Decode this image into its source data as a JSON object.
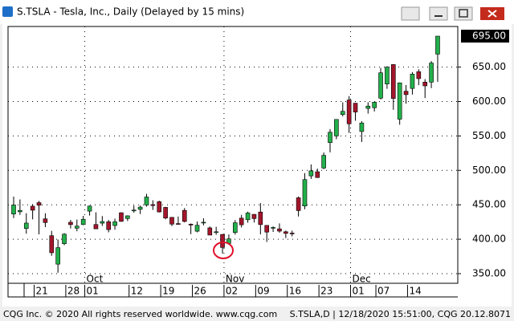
{
  "window": {
    "title": "S.TSLA - Tesla, Inc., Daily (Delayed by 15 mins)",
    "footer_left": "CQG Inc. © 2020 All rights reserved worldwide. www.cqg.com",
    "footer_right": "S.TSLA,D | 12/18/2020 15:51:00, CQG 20.12.8071"
  },
  "chart_data": {
    "type": "candlestick",
    "x": [
      "Sep 15",
      "Sep 16",
      "Sep 17",
      "Sep 18",
      "Sep 21",
      "Sep 22",
      "Sep 23",
      "Sep 24",
      "Sep 25",
      "Sep 28",
      "Sep 29",
      "Sep 30",
      "Oct 1",
      "Oct 2",
      "Oct 5",
      "Oct 6",
      "Oct 7",
      "Oct 8",
      "Oct 9",
      "Oct 12",
      "Oct 13",
      "Oct 14",
      "Oct 15",
      "Oct 16",
      "Oct 19",
      "Oct 20",
      "Oct 21",
      "Oct 22",
      "Oct 23",
      "Oct 26",
      "Oct 27",
      "Oct 28",
      "Oct 29",
      "Oct 30",
      "Nov 2",
      "Nov 3",
      "Nov 4",
      "Nov 5",
      "Nov 6",
      "Nov 9",
      "Nov 10",
      "Nov 11",
      "Nov 12",
      "Nov 13",
      "Nov 16",
      "Nov 17",
      "Nov 18",
      "Nov 19",
      "Nov 20",
      "Nov 23",
      "Nov 24",
      "Nov 25",
      "Nov 27",
      "Nov 30",
      "Dec 1",
      "Dec 2",
      "Dec 3",
      "Dec 4",
      "Dec 7",
      "Dec 8",
      "Dec 9",
      "Dec 10",
      "Dec 11",
      "Dec 14",
      "Dec 15",
      "Dec 16",
      "Dec 17",
      "Dec 18"
    ],
    "open": [
      436.56,
      439.87,
      415.6,
      447.94,
      453.13,
      429.6,
      405.16,
      363.8,
      393.47,
      424.62,
      416.0,
      421.32,
      440.76,
      421.39,
      423.35,
      425.3,
      419.87,
      438.44,
      430.13,
      442.0,
      443.35,
      449.78,
      450.31,
      454.44,
      446.24,
      431.75,
      422.7,
      441.92,
      421.84,
      411.63,
      423.76,
      416.48,
      409.96,
      406.9,
      394.0,
      409.73,
      430.62,
      428.3,
      436.1,
      439.5,
      420.09,
      416.45,
      415.05,
      410.85,
      408.93,
      460.17,
      448.35,
      492.0,
      497.99,
      503.5,
      540.4,
      550.06,
      581.16,
      602.21,
      597.59,
      556.44,
      590.02,
      591.01,
      604.92,
      625.51,
      653.69,
      574.37,
      615.01,
      619.0,
      643.28,
      628.23,
      628.19,
      668.9
    ],
    "high": [
      461.94,
      457.79,
      437.79,
      451.0,
      455.68,
      437.76,
      412.15,
      399.5,
      408.73,
      428.08,
      428.5,
      433.93,
      448.88,
      439.13,
      433.64,
      428.0,
      429.9,
      439.0,
      434.59,
      448.74,
      448.89,
      465.9,
      456.57,
      455.95,
      447.0,
      431.75,
      432.95,
      445.23,
      422.89,
      425.76,
      430.5,
      418.6,
      418.06,
      407.59,
      406.98,
      427.77,
      435.4,
      440.0,
      436.5,
      452.5,
      420.09,
      418.7,
      423.0,
      412.53,
      412.45,
      462.0,
      496.0,
      508.61,
      502.5,
      526.0,
      559.99,
      574.0,
      598.78,
      607.8,
      597.85,
      571.54,
      598.97,
      599.04,
      648.79,
      651.28,
      654.32,
      627.75,
      624.0,
      642.75,
      646.9,
      632.5,
      658.82,
      695.0
    ],
    "low": [
      430.7,
      435.31,
      408.0,
      428.8,
      407.07,
      417.6,
      375.88,
      351.3,
      391.3,
      415.55,
      411.6,
      420.47,
      434.42,
      415.0,
      419.33,
      410.0,
      413.85,
      425.3,
      426.46,
      438.58,
      436.6,
      447.35,
      442.5,
      438.85,
      428.87,
      419.05,
      421.25,
      424.51,
      407.38,
      410.0,
      420.1,
      406.0,
      406.46,
      379.11,
      392.3,
      406.69,
      417.1,
      424.0,
      424.28,
      407.0,
      396.03,
      410.58,
      409.52,
      401.66,
      404.09,
      433.01,
      443.5,
      487.57,
      489.06,
      501.79,
      526.2,
      545.37,
      578.45,
      554.51,
      572.05,
      541.21,
      582.43,
      585.5,
      603.05,
      618.5,
      588.0,
      566.34,
      596.8,
      610.2,
      623.8,
      605.0,
      619.5,
      628.54
    ],
    "close": [
      449.76,
      441.76,
      423.43,
      442.15,
      449.39,
      424.23,
      380.36,
      387.79,
      407.34,
      421.2,
      419.07,
      429.01,
      448.16,
      415.09,
      425.68,
      413.98,
      425.3,
      425.92,
      434.0,
      442.3,
      446.65,
      461.3,
      448.88,
      439.67,
      430.83,
      421.94,
      422.64,
      425.79,
      420.63,
      420.28,
      424.68,
      406.02,
      410.83,
      388.04,
      400.51,
      423.9,
      420.98,
      438.09,
      429.95,
      421.26,
      410.36,
      417.13,
      411.76,
      408.5,
      408.09,
      441.61,
      486.64,
      499.27,
      489.61,
      521.85,
      555.38,
      574.0,
      585.76,
      567.6,
      584.76,
      568.82,
      593.38,
      599.04,
      641.76,
      649.88,
      604.48,
      627.07,
      609.99,
      639.83,
      633.25,
      622.77,
      655.9,
      695.0
    ],
    "last_label": "695.00",
    "up_color": "#22b04a",
    "down_color": "#a3162b",
    "ylim": [
      336,
      709
    ],
    "yticks": [
      {
        "value": 350,
        "label": "350.00"
      },
      {
        "value": 400,
        "label": "400.00"
      },
      {
        "value": 450,
        "label": "450.00"
      },
      {
        "value": 500,
        "label": "500.00"
      },
      {
        "value": 550,
        "label": "550.00"
      },
      {
        "value": 600,
        "label": "600.00"
      },
      {
        "value": 650,
        "label": "650.00"
      }
    ],
    "xticks": [
      {
        "value": "Sep 21",
        "label": "21"
      },
      {
        "value": "Sep 28",
        "label": "28"
      },
      {
        "value": "Oct 1",
        "label": "01"
      },
      {
        "value": "Oct 12",
        "label": "12"
      },
      {
        "value": "Oct 19",
        "label": "19"
      },
      {
        "value": "Oct 26",
        "label": "26"
      },
      {
        "value": "Nov 2",
        "label": "02"
      },
      {
        "value": "Nov 9",
        "label": "09"
      },
      {
        "value": "Nov 16",
        "label": "16"
      },
      {
        "value": "Nov 23",
        "label": "23"
      },
      {
        "value": "Dec 1",
        "label": "01"
      },
      {
        "value": "Dec 7",
        "label": "07"
      },
      {
        "value": "Dec 14",
        "label": "14"
      }
    ],
    "month_labels": [
      {
        "value": "Oct 1",
        "label": "Oct"
      },
      {
        "value": "Nov 2",
        "label": "Nov"
      },
      {
        "value": "Dec 1",
        "label": "Dec"
      }
    ],
    "grid": true
  }
}
